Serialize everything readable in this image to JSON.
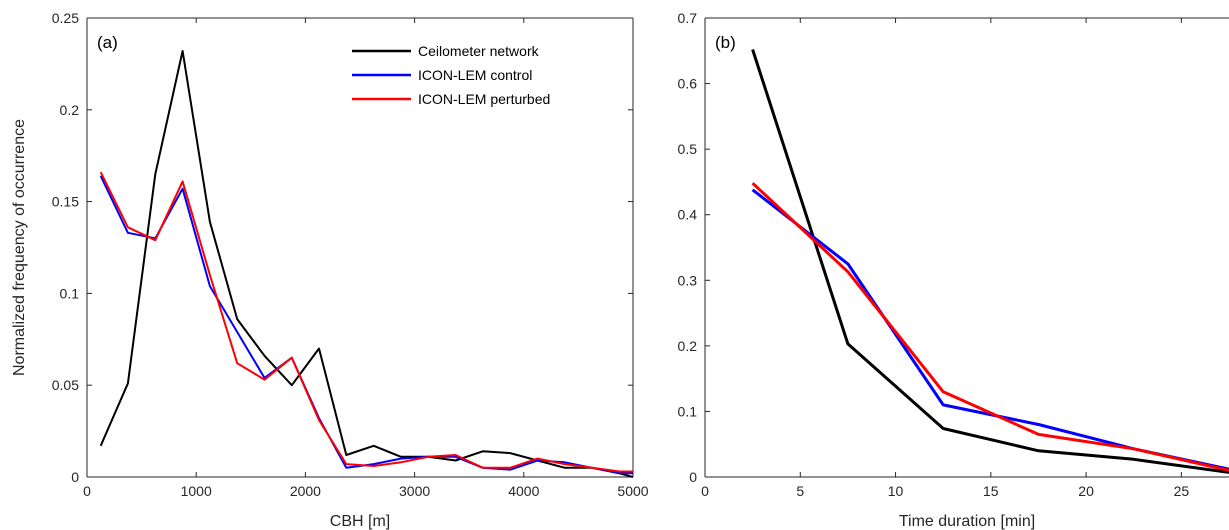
{
  "chart_data": [
    {
      "type": "line",
      "panel_label": "(a)",
      "xlabel": "CBH [m]",
      "ylabel": "Normalized frequency of occurrence",
      "xlim": [
        0,
        5000
      ],
      "ylim": [
        0,
        0.25
      ],
      "xticks": [
        0,
        1000,
        2000,
        3000,
        4000,
        5000
      ],
      "xtick_labels": [
        "0",
        "1000",
        "2000",
        "3000",
        "4000",
        "5000"
      ],
      "yticks": [
        0,
        0.05,
        0.1,
        0.15,
        0.2,
        0.25
      ],
      "ytick_labels": [
        "0",
        "0.05",
        "0.1",
        "0.15",
        "0.2",
        "0.25"
      ],
      "grid": false,
      "legend_position": "top-right",
      "x": [
        125,
        375,
        625,
        875,
        1125,
        1375,
        1625,
        1875,
        2125,
        2375,
        2625,
        2875,
        3125,
        3375,
        3625,
        3875,
        4125,
        4375,
        4625,
        4875,
        5000
      ],
      "series": [
        {
          "name": "Ceilometer network",
          "color": "#000000",
          "values": [
            0.017,
            0.051,
            0.165,
            0.232,
            0.139,
            0.086,
            0.066,
            0.05,
            0.07,
            0.012,
            0.017,
            0.011,
            0.011,
            0.009,
            0.014,
            0.013,
            0.009,
            0.005,
            0.005,
            0.002,
            0.0
          ]
        },
        {
          "name": "ICON-LEM control",
          "color": "#0000ff",
          "values": [
            0.164,
            0.133,
            0.13,
            0.157,
            0.104,
            0.079,
            0.054,
            0.065,
            0.032,
            0.005,
            0.007,
            0.01,
            0.011,
            0.011,
            0.005,
            0.004,
            0.009,
            0.008,
            0.005,
            0.002,
            0.002
          ]
        },
        {
          "name": "ICON-LEM perturbed",
          "color": "#ff0000",
          "values": [
            0.166,
            0.136,
            0.129,
            0.161,
            0.11,
            0.062,
            0.053,
            0.065,
            0.031,
            0.007,
            0.006,
            0.008,
            0.011,
            0.012,
            0.005,
            0.005,
            0.01,
            0.007,
            0.005,
            0.003,
            0.003
          ]
        }
      ]
    },
    {
      "type": "line",
      "panel_label": "(b)",
      "xlabel": "Time duration [min]",
      "ylabel": "",
      "xlim": [
        0,
        27.5
      ],
      "ylim": [
        0,
        0.7
      ],
      "xticks": [
        0,
        5,
        10,
        15,
        20,
        25
      ],
      "xtick_labels": [
        "0",
        "5",
        "10",
        "15",
        "20",
        "25"
      ],
      "yticks": [
        0,
        0.1,
        0.2,
        0.3,
        0.4,
        0.5,
        0.6,
        0.7
      ],
      "ytick_labels": [
        "0",
        "0.1",
        "0.2",
        "0.3",
        "0.4",
        "0.5",
        "0.6",
        "0.7"
      ],
      "grid": false,
      "x": [
        2.5,
        7.5,
        12.5,
        17.5,
        22.5,
        27.5
      ],
      "series": [
        {
          "color": "#000000",
          "values": [
            0.652,
            0.203,
            0.074,
            0.04,
            0.027,
            0.007
          ]
        },
        {
          "color": "#0000ff",
          "values": [
            0.438,
            0.325,
            0.11,
            0.08,
            0.043,
            0.012
          ]
        },
        {
          "color": "#ff0000",
          "values": [
            0.448,
            0.313,
            0.13,
            0.065,
            0.043,
            0.01
          ]
        }
      ]
    }
  ]
}
